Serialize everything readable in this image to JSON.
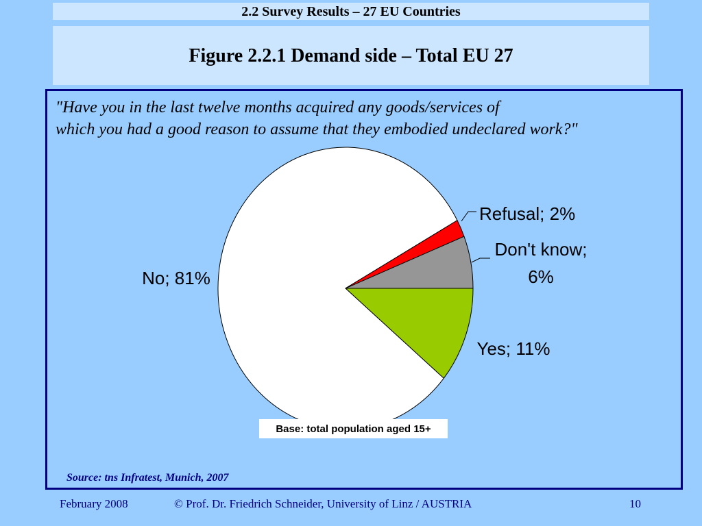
{
  "header": {
    "section_title": "2.2 Survey Results – 27 EU Countries"
  },
  "figure": {
    "title": "Figure 2.2.1 Demand side – Total EU 27"
  },
  "chart_data": {
    "type": "pie",
    "question": [
      "\"Have you in the last twelve months acquired any goods/services of",
      "which you had a good reason to assume that they embodied undeclared work?\""
    ],
    "slices": [
      {
        "name": "Yes",
        "value": 11,
        "label": "Yes; 11%",
        "color": "#99cc00"
      },
      {
        "name": "No",
        "value": 81,
        "label": "No; 81%",
        "color": "#ffffff"
      },
      {
        "name": "Refusal",
        "value": 2,
        "label": "Refusal; 2%",
        "color": "#ff0000"
      },
      {
        "name": "Don't know",
        "value": 6,
        "label_lines": [
          "Don't know;",
          "6%"
        ],
        "color": "#969696"
      }
    ],
    "base_note": "Base: total population aged 15+",
    "source": "Source: tns Infratest, Munich, 2007"
  },
  "footer": {
    "date": "February 2008",
    "copyright": "© Prof. Dr. Friedrich Schneider, University of Linz / AUSTRIA",
    "page_number": "10"
  }
}
